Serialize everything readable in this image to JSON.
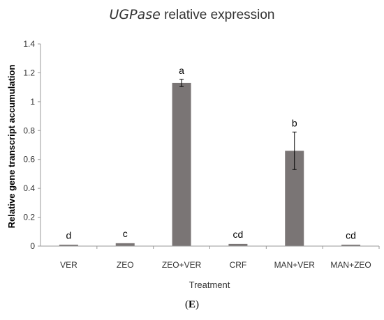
{
  "chart_data": {
    "type": "bar",
    "title_italic": "UGPase",
    "title_rest": " relative expression",
    "xlabel": "Treatment",
    "ylabel": "Relative gene transcript accumulation",
    "ylim": [
      0,
      1.4
    ],
    "yticks": [
      "0",
      "0.2",
      "0.4",
      "0.6",
      "0.8",
      "1",
      "1.2",
      "1.4"
    ],
    "categories": [
      "VER",
      "ZEO",
      "ZEO+VER",
      "CRF",
      "MAN+VER",
      "MAN+ZEO"
    ],
    "values": [
      0.01,
      0.02,
      1.13,
      0.015,
      0.66,
      0.01
    ],
    "errors": [
      0.003,
      0.005,
      0.025,
      0.004,
      0.13,
      0.003
    ],
    "letters": [
      "d",
      "c",
      "a",
      "cd",
      "b",
      "cd"
    ],
    "bar_color": "#7a7575"
  },
  "panel_label": {
    "open": "(",
    "letter": "E",
    "close": ")"
  }
}
